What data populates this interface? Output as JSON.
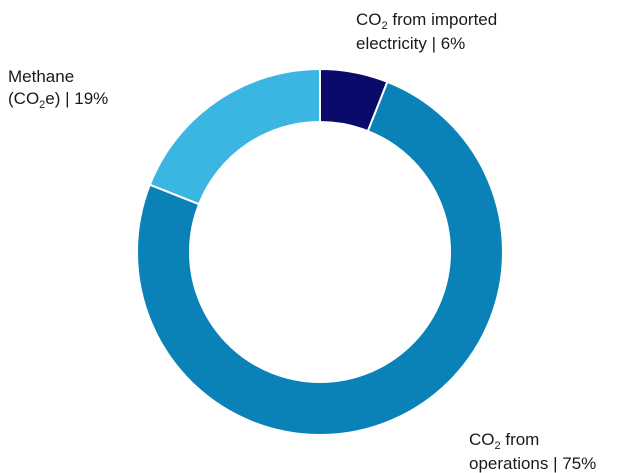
{
  "chart_data": {
    "type": "pie",
    "title": "",
    "slices": [
      {
        "key": "electricity",
        "label_parts": [
          "CO",
          "2",
          " from imported",
          "electricity | 6%"
        ],
        "value": 6,
        "color": "#0a0a6b"
      },
      {
        "key": "operations",
        "label_parts": [
          "CO",
          "2",
          " from",
          "operations | 75%"
        ],
        "value": 75,
        "color": "#0a82b8"
      },
      {
        "key": "methane",
        "label_parts": [
          "Methane",
          "(CO",
          "2",
          "e) | 19%"
        ],
        "value": 19,
        "color": "#3bb6e2"
      }
    ],
    "start_angle_deg": 0,
    "direction": "clockwise",
    "donut": true
  }
}
